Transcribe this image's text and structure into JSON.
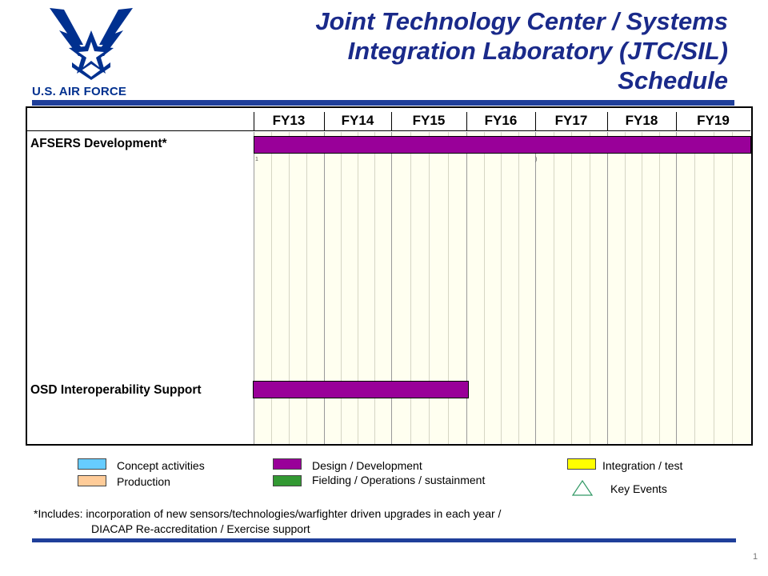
{
  "logo": {
    "text": "U.S. AIR FORCE"
  },
  "title": {
    "line1": "Joint Technology Center / Systems",
    "line2": "Integration Laboratory (JTC/SIL)",
    "line3": "Schedule"
  },
  "schedule": {
    "fiscal_years": [
      "FY13",
      "FY14",
      "FY15",
      "FY16",
      "FY17",
      "FY18",
      "FY19"
    ],
    "tasks": [
      {
        "label": "AFSERS Development*",
        "activity": "Design / Development",
        "start": "FY13",
        "end": "FY19"
      },
      {
        "label": "OSD Interoperability Support",
        "activity": "Design / Development",
        "start": "FY13",
        "end": "FY15"
      }
    ],
    "stray_marks": [
      "1",
      ")"
    ]
  },
  "legend": [
    {
      "label": "Concept activities",
      "color": "#66ccff"
    },
    {
      "label": "Production",
      "color": "#ffcc99"
    },
    {
      "label": "Design / Development",
      "color": "#990099"
    },
    {
      "label": "Fielding / Operations / sustainment",
      "color": "#339933"
    },
    {
      "label": "Integration  / test",
      "color": "#ffff00"
    },
    {
      "label": "Key Events",
      "icon": "triangle-icon",
      "color": "#339966"
    }
  ],
  "footnote": {
    "line1": "*Includes:  incorporation of new sensors/technologies/warfighter  driven upgrades in each year /",
    "line2": "DIACAP Re-accreditation / Exercise support"
  },
  "page_number": "1"
}
